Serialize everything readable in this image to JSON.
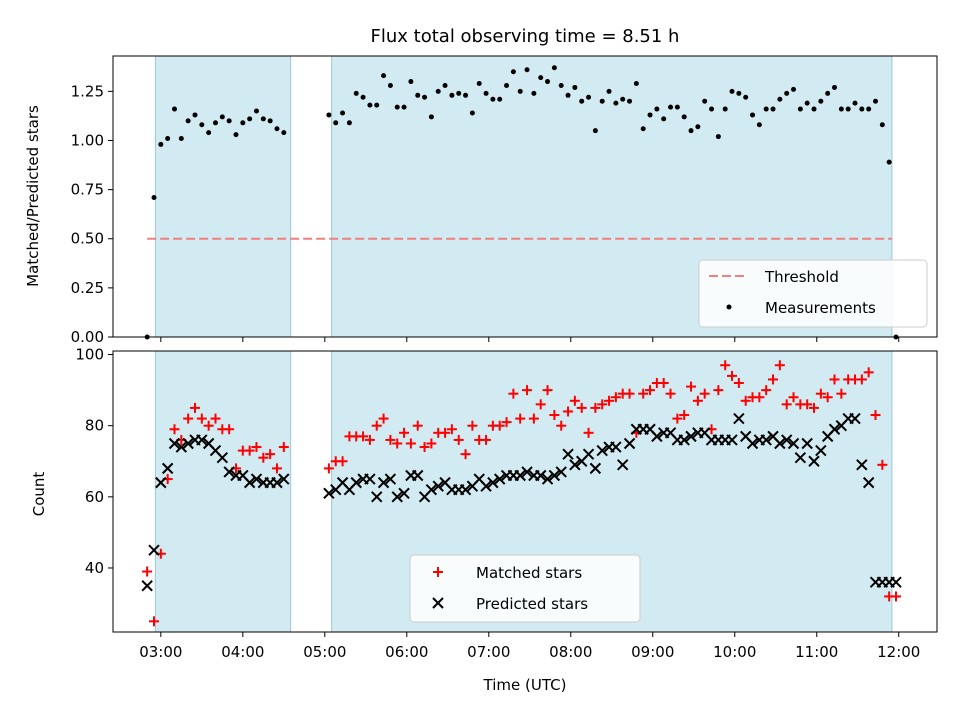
{
  "chart_data": [
    {
      "type": "scatter",
      "title": "Flux total observing time = 8.51 h",
      "xlabel": "",
      "ylabel": "Matched/Predicted stars",
      "xlim": [
        "02:25",
        "12:28"
      ],
      "ylim": [
        0,
        1.43
      ],
      "yticks": [
        "0.00",
        "0.25",
        "0.50",
        "0.75",
        "1.00",
        "1.25"
      ],
      "grid": false,
      "shaded_intervals": [
        [
          "02:56",
          "04:35"
        ],
        [
          "05:05",
          "11:55"
        ]
      ],
      "shade_color": "#add8e6",
      "legend_position": "lower-right",
      "series": [
        {
          "name": "Threshold",
          "style": "dashed-line",
          "color": "#f08080",
          "x": [
            "02:50",
            "11:55"
          ],
          "y": [
            0.5,
            0.5
          ]
        },
        {
          "name": "Measurements",
          "style": "dot",
          "color": "#000000",
          "x": [
            "02:50",
            "02:55",
            "03:00",
            "03:05",
            "03:10",
            "03:15",
            "03:20",
            "03:25",
            "03:30",
            "03:35",
            "03:40",
            "03:45",
            "03:50",
            "03:55",
            "04:00",
            "04:05",
            "04:10",
            "04:15",
            "04:20",
            "04:25",
            "04:30",
            "05:03",
            "05:08",
            "05:13",
            "05:18",
            "05:23",
            "05:28",
            "05:33",
            "05:38",
            "05:43",
            "05:48",
            "05:53",
            "05:58",
            "06:03",
            "06:08",
            "06:13",
            "06:18",
            "06:23",
            "06:28",
            "06:33",
            "06:38",
            "06:43",
            "06:48",
            "06:53",
            "06:58",
            "07:03",
            "07:08",
            "07:13",
            "07:18",
            "07:23",
            "07:28",
            "07:33",
            "07:38",
            "07:43",
            "07:48",
            "07:53",
            "07:58",
            "08:03",
            "08:08",
            "08:13",
            "08:18",
            "08:23",
            "08:28",
            "08:33",
            "08:38",
            "08:43",
            "08:48",
            "08:53",
            "08:58",
            "09:03",
            "09:08",
            "09:13",
            "09:18",
            "09:23",
            "09:28",
            "09:33",
            "09:38",
            "09:43",
            "09:48",
            "09:53",
            "09:58",
            "10:03",
            "10:08",
            "10:13",
            "10:18",
            "10:23",
            "10:28",
            "10:33",
            "10:38",
            "10:43",
            "10:48",
            "10:53",
            "10:58",
            "11:03",
            "11:08",
            "11:13",
            "11:18",
            "11:23",
            "11:28",
            "11:33",
            "11:38",
            "11:43",
            "11:48",
            "11:53",
            "11:58"
          ],
          "y": [
            0.0,
            0.71,
            0.98,
            1.01,
            1.16,
            1.01,
            1.1,
            1.13,
            1.08,
            1.04,
            1.09,
            1.12,
            1.1,
            1.03,
            1.09,
            1.11,
            1.15,
            1.11,
            1.1,
            1.06,
            1.04,
            1.13,
            1.09,
            1.14,
            1.09,
            1.24,
            1.22,
            1.18,
            1.18,
            1.33,
            1.28,
            1.17,
            1.17,
            1.3,
            1.23,
            1.22,
            1.12,
            1.25,
            1.28,
            1.23,
            1.24,
            1.23,
            1.14,
            1.29,
            1.24,
            1.21,
            1.21,
            1.28,
            1.35,
            1.25,
            1.36,
            1.24,
            1.32,
            1.3,
            1.37,
            1.28,
            1.23,
            1.27,
            1.2,
            1.22,
            1.05,
            1.2,
            1.25,
            1.19,
            1.21,
            1.2,
            1.29,
            1.06,
            1.13,
            1.16,
            1.11,
            1.17,
            1.17,
            1.12,
            1.05,
            1.07,
            1.2,
            1.16,
            1.02,
            1.16,
            1.25,
            1.24,
            1.22,
            1.13,
            1.08,
            1.16,
            1.16,
            1.21,
            1.24,
            1.26,
            1.16,
            1.19,
            1.16,
            1.2,
            1.24,
            1.27,
            1.16,
            1.16,
            1.19,
            1.16,
            1.16,
            1.2,
            1.08,
            0.89,
            0.0
          ]
        }
      ]
    },
    {
      "type": "scatter",
      "title": "",
      "xlabel": "Time (UTC)",
      "ylabel": "Count",
      "xlim": [
        "02:25",
        "12:28"
      ],
      "xticks": [
        "03:00",
        "04:00",
        "05:00",
        "06:00",
        "07:00",
        "08:00",
        "09:00",
        "10:00",
        "11:00",
        "12:00"
      ],
      "ylim": [
        22,
        101
      ],
      "yticks": [
        "40",
        "60",
        "80",
        "100"
      ],
      "grid": false,
      "shaded_intervals": [
        [
          "02:56",
          "04:35"
        ],
        [
          "05:05",
          "11:55"
        ]
      ],
      "shade_color": "#add8e6",
      "legend_position": "lower-center",
      "series": [
        {
          "name": "Matched stars",
          "marker": "plus",
          "color": "#ff0000",
          "x": [
            "02:50",
            "02:55",
            "03:00",
            "03:05",
            "03:10",
            "03:15",
            "03:20",
            "03:25",
            "03:30",
            "03:35",
            "03:40",
            "03:45",
            "03:50",
            "03:55",
            "04:00",
            "04:05",
            "04:10",
            "04:15",
            "04:20",
            "04:25",
            "04:30",
            "05:03",
            "05:08",
            "05:13",
            "05:18",
            "05:23",
            "05:28",
            "05:33",
            "05:38",
            "05:43",
            "05:48",
            "05:53",
            "05:58",
            "06:03",
            "06:08",
            "06:13",
            "06:18",
            "06:23",
            "06:28",
            "06:33",
            "06:38",
            "06:43",
            "06:48",
            "06:53",
            "06:58",
            "07:03",
            "07:08",
            "07:13",
            "07:18",
            "07:23",
            "07:28",
            "07:33",
            "07:38",
            "07:43",
            "07:48",
            "07:53",
            "07:58",
            "08:03",
            "08:08",
            "08:13",
            "08:18",
            "08:23",
            "08:28",
            "08:33",
            "08:38",
            "08:43",
            "08:48",
            "08:53",
            "08:58",
            "09:03",
            "09:08",
            "09:13",
            "09:18",
            "09:23",
            "09:28",
            "09:33",
            "09:38",
            "09:43",
            "09:48",
            "09:53",
            "09:58",
            "10:03",
            "10:08",
            "10:13",
            "10:18",
            "10:23",
            "10:28",
            "10:33",
            "10:38",
            "10:43",
            "10:48",
            "10:53",
            "10:58",
            "11:03",
            "11:08",
            "11:13",
            "11:18",
            "11:23",
            "11:28",
            "11:33",
            "11:38",
            "11:43",
            "11:48",
            "11:53",
            "11:58"
          ],
          "y": [
            39,
            25,
            44,
            65,
            79,
            76,
            82,
            85,
            82,
            80,
            82,
            79,
            79,
            68,
            73,
            73,
            74,
            71,
            72,
            68,
            74,
            68,
            70,
            70,
            77,
            77,
            77,
            76,
            80,
            82,
            76,
            75,
            78,
            75,
            80,
            74,
            75,
            78,
            78,
            79,
            76,
            72,
            80,
            76,
            76,
            80,
            80,
            81,
            89,
            82,
            90,
            82,
            86,
            90,
            83,
            80,
            84,
            87,
            85,
            78,
            85,
            86,
            87,
            88,
            89,
            89,
            78,
            89,
            90,
            92,
            92,
            89,
            82,
            83,
            91,
            87,
            89,
            79,
            90,
            97,
            94,
            92,
            87,
            88,
            88,
            90,
            93,
            97,
            86,
            88,
            86,
            86,
            85,
            89,
            88,
            93,
            89,
            93,
            93,
            93,
            95,
            83,
            69,
            32,
            32
          ]
        },
        {
          "name": "Predicted stars",
          "marker": "x",
          "color": "#000000",
          "x": [
            "02:50",
            "02:55",
            "03:00",
            "03:05",
            "03:10",
            "03:15",
            "03:20",
            "03:25",
            "03:30",
            "03:35",
            "03:40",
            "03:45",
            "03:50",
            "03:55",
            "04:00",
            "04:05",
            "04:10",
            "04:15",
            "04:20",
            "04:25",
            "04:30",
            "05:03",
            "05:08",
            "05:13",
            "05:18",
            "05:23",
            "05:28",
            "05:33",
            "05:38",
            "05:43",
            "05:48",
            "05:53",
            "05:58",
            "06:03",
            "06:08",
            "06:13",
            "06:18",
            "06:23",
            "06:28",
            "06:33",
            "06:38",
            "06:43",
            "06:48",
            "06:53",
            "06:58",
            "07:03",
            "07:08",
            "07:13",
            "07:18",
            "07:23",
            "07:28",
            "07:33",
            "07:38",
            "07:43",
            "07:48",
            "07:53",
            "07:58",
            "08:03",
            "08:08",
            "08:13",
            "08:18",
            "08:23",
            "08:28",
            "08:33",
            "08:38",
            "08:43",
            "08:48",
            "08:53",
            "08:58",
            "09:03",
            "09:08",
            "09:13",
            "09:18",
            "09:23",
            "09:28",
            "09:33",
            "09:38",
            "09:43",
            "09:48",
            "09:53",
            "09:58",
            "10:03",
            "10:08",
            "10:13",
            "10:18",
            "10:23",
            "10:28",
            "10:33",
            "10:38",
            "10:43",
            "10:48",
            "10:53",
            "10:58",
            "11:03",
            "11:08",
            "11:13",
            "11:18",
            "11:23",
            "11:28",
            "11:33",
            "11:38",
            "11:43",
            "11:48",
            "11:53",
            "11:58"
          ],
          "y": [
            35,
            45,
            64,
            68,
            75,
            74,
            75,
            76,
            76,
            75,
            73,
            71,
            67,
            66,
            66,
            64,
            65,
            64,
            64,
            64,
            65,
            61,
            62,
            64,
            62,
            64,
            65,
            65,
            60,
            64,
            65,
            60,
            61,
            66,
            66,
            60,
            62,
            63,
            64,
            62,
            62,
            62,
            63,
            65,
            63,
            64,
            65,
            66,
            66,
            66,
            67,
            66,
            66,
            65,
            66,
            67,
            72,
            69,
            70,
            72,
            68,
            73,
            74,
            74,
            69,
            75,
            79,
            79,
            79,
            77,
            78,
            78,
            76,
            76,
            77,
            78,
            78,
            76,
            76,
            76,
            76,
            82,
            77,
            75,
            76,
            76,
            77,
            75,
            76,
            75,
            71,
            75,
            70,
            73,
            77,
            79,
            80,
            82,
            82,
            69,
            64,
            36,
            36,
            36,
            36
          ]
        }
      ]
    }
  ]
}
